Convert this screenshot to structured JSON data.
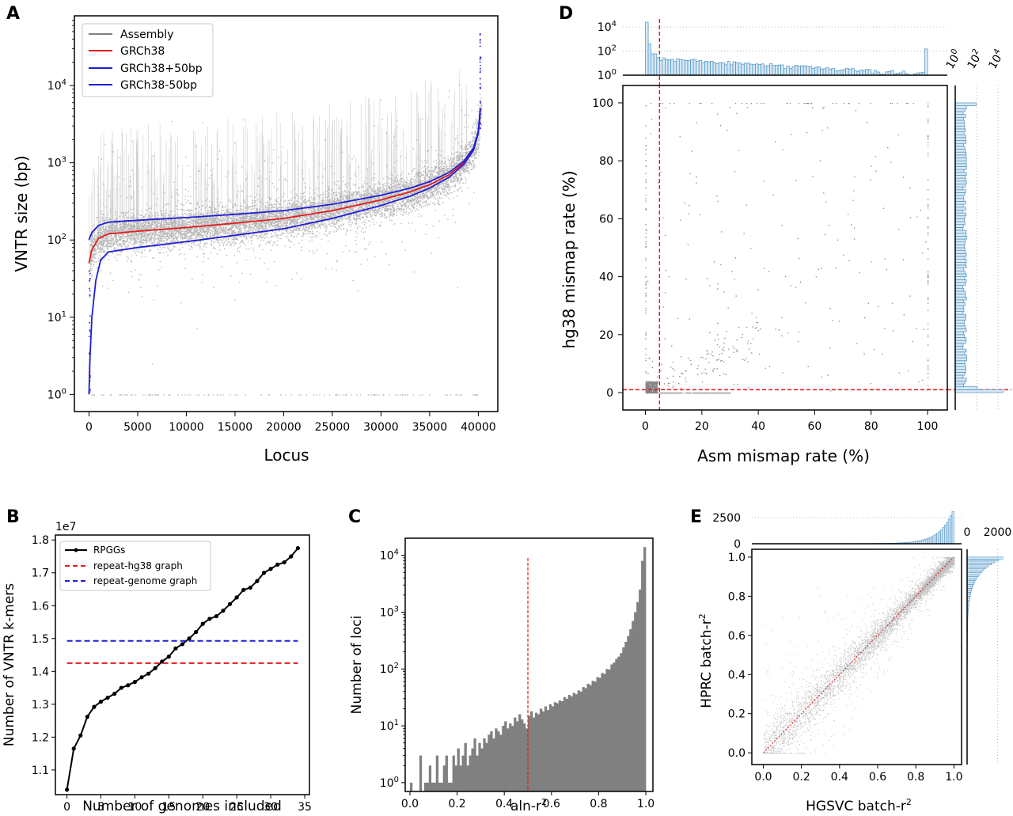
{
  "figure": {
    "panel_letters": [
      "A",
      "B",
      "C",
      "D",
      "E"
    ]
  },
  "chart_data": [
    {
      "id": "A",
      "type": "scatter",
      "xlabel": "Locus",
      "ylabel": "VNTR size (bp)",
      "yscale": "log",
      "xlim": [
        -1500,
        42000
      ],
      "ylim": [
        0.6,
        80000
      ],
      "x_ticks": [
        0,
        5000,
        10000,
        15000,
        20000,
        25000,
        30000,
        35000,
        40000
      ],
      "y_ticks": [
        1,
        10,
        100,
        1000,
        10000
      ],
      "y_tick_labels": [
        "10^0",
        "10^1",
        "10^2",
        "10^3",
        "10^4"
      ],
      "legend": {
        "position": "top-left",
        "entries": [
          "Assembly",
          "GRCh38",
          "GRCh38+50bp",
          "GRCh38-50bp"
        ]
      },
      "colors": {
        "Assembly": "#808080",
        "GRCh38": "#e41a1c",
        "GRCh38+50bp": "#1f1fd6",
        "GRCh38-50bp": "#1f1fd6"
      },
      "series": [
        {
          "name": "GRCh38",
          "x": [
            0,
            300,
            1000,
            2000,
            5000,
            10000,
            15000,
            20000,
            25000,
            30000,
            33000,
            35000,
            37000,
            38500,
            39500,
            40000,
            40200
          ],
          "y": [
            50,
            75,
            105,
            120,
            130,
            145,
            165,
            190,
            240,
            330,
            420,
            520,
            700,
            1000,
            1500,
            2500,
            5000
          ]
        },
        {
          "name": "GRCh38+50bp",
          "x": [
            0,
            300,
            1000,
            2000,
            5000,
            10000,
            15000,
            20000,
            25000,
            30000,
            33000,
            35000,
            37000,
            38500,
            39500,
            40000,
            40200
          ],
          "y": [
            100,
            125,
            155,
            170,
            180,
            195,
            215,
            240,
            290,
            380,
            470,
            570,
            750,
            1050,
            1550,
            2550,
            5050
          ]
        },
        {
          "name": "GRCh38-50bp",
          "x": [
            0,
            100,
            300,
            700,
            1200,
            2000,
            5000,
            10000,
            15000,
            20000,
            25000,
            30000,
            33000,
            35000,
            37000,
            38500,
            39500,
            40000,
            40200
          ],
          "y": [
            1,
            3,
            10,
            30,
            55,
            70,
            80,
            95,
            115,
            140,
            190,
            280,
            370,
            470,
            650,
            950,
            1450,
            2450,
            4950
          ]
        }
      ]
    },
    {
      "id": "B",
      "type": "line",
      "xlabel": "Number of genomes included",
      "ylabel": "Number of VNTR k-mers",
      "offset_label": "1e7",
      "xlim": [
        -1.7,
        35.7
      ],
      "ylim": [
        1.025,
        1.815
      ],
      "x_ticks": [
        0,
        5,
        10,
        15,
        20,
        25,
        30,
        35
      ],
      "y_ticks": [
        1.1,
        1.2,
        1.3,
        1.4,
        1.5,
        1.6,
        1.7,
        1.8
      ],
      "legend": {
        "position": "top-left",
        "entries": [
          "RPGGs",
          "repeat-hg38 graph",
          "repeat-genome graph"
        ]
      },
      "colors": {
        "RPGGs": "#000000",
        "repeat-hg38 graph": "#e41a1c",
        "repeat-genome graph": "#1f1fd6"
      },
      "series": [
        {
          "name": "RPGGs",
          "x": [
            0,
            1,
            2,
            3,
            4,
            5,
            6,
            7,
            8,
            9,
            10,
            11,
            12,
            13,
            14,
            15,
            16,
            17,
            18,
            19,
            20,
            21,
            22,
            23,
            24,
            25,
            26,
            27,
            28,
            29,
            30,
            31,
            32,
            33,
            34
          ],
          "values": [
            1.04,
            1.165,
            1.205,
            1.262,
            1.292,
            1.308,
            1.32,
            1.332,
            1.35,
            1.358,
            1.368,
            1.382,
            1.393,
            1.41,
            1.43,
            1.445,
            1.47,
            1.483,
            1.5,
            1.52,
            1.545,
            1.56,
            1.568,
            1.585,
            1.605,
            1.625,
            1.648,
            1.655,
            1.675,
            1.7,
            1.712,
            1.725,
            1.732,
            1.75,
            1.775
          ]
        },
        {
          "name": "repeat-hg38 graph",
          "x": [
            0,
            34
          ],
          "values": [
            1.425,
            1.425
          ]
        },
        {
          "name": "repeat-genome graph",
          "x": [
            0,
            34
          ],
          "values": [
            1.493,
            1.493
          ]
        }
      ]
    },
    {
      "id": "C",
      "type": "bar",
      "xlabel": "aln-r",
      "xlabel_sup": "2",
      "ylabel": "Number of loci",
      "yscale": "log",
      "xlim": [
        -0.02,
        1.03
      ],
      "ylim": [
        0.7,
        20000
      ],
      "x_ticks": [
        0.0,
        0.2,
        0.4,
        0.6,
        0.8,
        1.0
      ],
      "y_ticks": [
        1,
        10,
        100,
        1000,
        10000
      ],
      "y_tick_labels": [
        "10^0",
        "10^1",
        "10^2",
        "10^3",
        "10^4"
      ],
      "threshold_line": 0.5,
      "colors": {
        "bars": "#808080",
        "threshold": "#e41a1c"
      },
      "bin_width": 0.01,
      "bin_starts": [
        0.0,
        1.0
      ],
      "values": [
        1,
        0,
        0,
        0,
        3,
        0,
        1,
        1,
        2,
        1,
        1,
        3,
        1,
        1,
        2,
        3,
        1,
        1,
        3,
        2,
        4,
        2,
        3,
        5,
        2,
        3,
        4,
        6,
        3,
        5,
        4,
        6,
        5,
        7,
        8,
        6,
        9,
        8,
        7,
        10,
        12,
        9,
        11,
        10,
        14,
        12,
        16,
        13,
        11,
        9,
        15,
        18,
        14,
        17,
        16,
        20,
        18,
        22,
        19,
        24,
        22,
        26,
        25,
        28,
        27,
        32,
        30,
        35,
        33,
        38,
        36,
        42,
        40,
        48,
        46,
        55,
        52,
        62,
        60,
        72,
        70,
        85,
        82,
        100,
        98,
        120,
        130,
        150,
        165,
        190,
        240,
        300,
        380,
        500,
        700,
        1000,
        1500,
        2500,
        8000,
        14000
      ]
    },
    {
      "id": "D",
      "type": "scatter",
      "xlabel": "Asm mismap rate (%)",
      "ylabel": "hg38 mismap rate (%)",
      "xlim": [
        -8,
        107
      ],
      "ylim": [
        -6,
        106
      ],
      "x_ticks": [
        0,
        20,
        40,
        60,
        80,
        100
      ],
      "y_ticks": [
        0,
        20,
        40,
        60,
        80,
        100
      ],
      "threshold_x": 5,
      "threshold_y": 1,
      "marginal_top": {
        "yscale": "log",
        "ticks": [
          1,
          100,
          10000
        ],
        "tick_labels": [
          "10^0",
          "10^2",
          "10^4"
        ]
      },
      "marginal_right": {
        "xscale": "log",
        "ticks": [
          1,
          100,
          10000
        ],
        "tick_labels": [
          "10^0",
          "10^2",
          "10^4"
        ]
      },
      "colors": {
        "points": "#333333",
        "threshold": "#e41a1c",
        "hist": "#4a90c2"
      }
    },
    {
      "id": "E",
      "type": "scatter",
      "xlabel": "HGSVC batch-r",
      "xlabel_sup": "2",
      "ylabel": "HPRC batch-r",
      "ylabel_sup": "2",
      "xlim": [
        -0.06,
        1.04
      ],
      "ylim": [
        -0.06,
        1.04
      ],
      "x_ticks": [
        0.0,
        0.2,
        0.4,
        0.6,
        0.8,
        1.0
      ],
      "y_ticks": [
        0.0,
        0.2,
        0.4,
        0.6,
        0.8,
        1.0
      ],
      "diagonal": [
        [
          0,
          0
        ],
        [
          1,
          1
        ]
      ],
      "marginal_top": {
        "ticks": [
          0,
          2500
        ]
      },
      "marginal_right": {
        "ticks": [
          0,
          2000
        ]
      },
      "colors": {
        "points": "#222222",
        "diagonal": "#e41a1c",
        "hist": "#4a90c2"
      }
    }
  ]
}
